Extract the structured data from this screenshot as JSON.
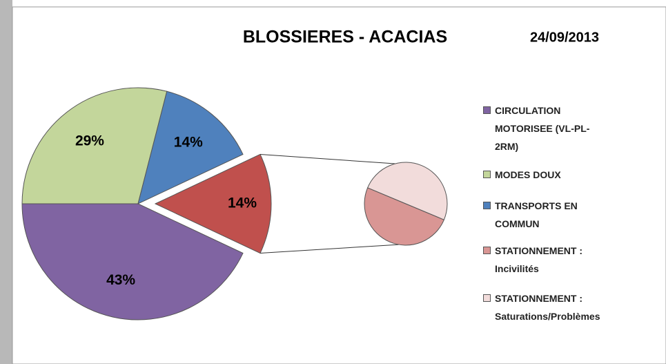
{
  "chart_data": {
    "type": "pie-of-pie",
    "title": "BLOSSIERES - ACACIAS",
    "subtitle": "24/09/2013",
    "main": {
      "categories": [
        "CIRCULATION MOTORISEE (VL-PL-2RM)",
        "MODES DOUX",
        "TRANSPORTS EN COMMUN",
        null
      ],
      "values": [
        43,
        29,
        14,
        14
      ],
      "value_labels": [
        "43%",
        "29%",
        "14%",
        "14%"
      ],
      "colors": [
        "#8064a2",
        "#c3d69b",
        "#4f81bd",
        "#c0504d"
      ]
    },
    "secondary": {
      "categories": [
        "STATIONNEMENT : Incivilités",
        "STATIONNEMENT : Saturations/Problèmes"
      ],
      "values": [
        7,
        7
      ],
      "colors": [
        "#d99694",
        "#f2dcdb"
      ]
    }
  }
}
